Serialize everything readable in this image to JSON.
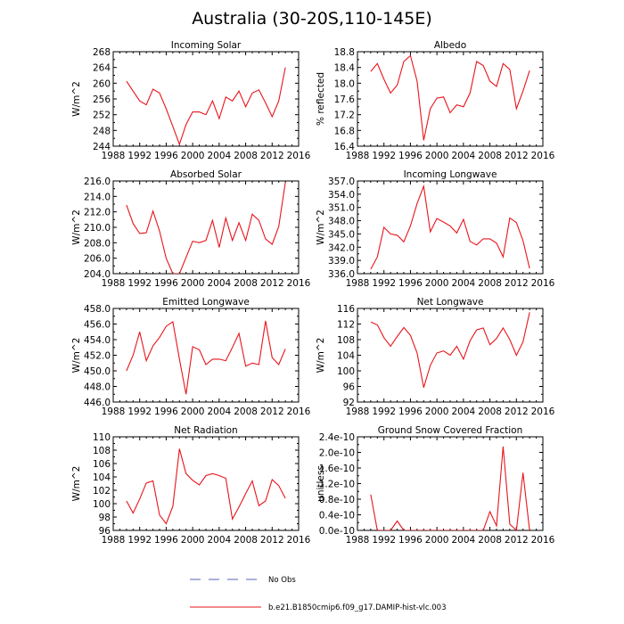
{
  "figure_title": "Australia (30-20S,110-145E)",
  "legend": [
    {
      "label": "No Obs",
      "style": "dashed",
      "color": "#5a5fb8"
    },
    {
      "label": "b.e21.B1850cmip6.f09_g17.DAMIP-hist-vlc.003",
      "style": "solid",
      "color": "#e8141b"
    }
  ],
  "chart_data": [
    {
      "type": "line",
      "title": "Incoming Solar",
      "ylabel": "W/m^2",
      "x": [
        1990,
        1991,
        1992,
        1993,
        1994,
        1995,
        1996,
        1997,
        1998,
        1999,
        2000,
        2001,
        2002,
        2003,
        2004,
        2005,
        2006,
        2007,
        2008,
        2009,
        2010,
        2011,
        2012,
        2013,
        2014
      ],
      "values": [
        260.5,
        258.0,
        255.5,
        254.5,
        258.5,
        257.5,
        253.5,
        249.0,
        244.5,
        249.5,
        252.7,
        252.7,
        252.0,
        255.5,
        251.0,
        256.5,
        255.5,
        258.0,
        254.0,
        257.5,
        258.3,
        255.0,
        251.5,
        255.5,
        264.0
      ],
      "xlim": [
        1988,
        2016
      ],
      "ylim": [
        244,
        268
      ],
      "yticks": [
        "244",
        "248",
        "252",
        "256",
        "260",
        "264",
        "268"
      ],
      "xticks": [
        "1988",
        "1992",
        "1996",
        "2000",
        "2004",
        "2008",
        "2012",
        "2016"
      ]
    },
    {
      "type": "line",
      "title": "Albedo",
      "ylabel": "% reflected",
      "x": [
        1990,
        1991,
        1992,
        1993,
        1994,
        1995,
        1996,
        1997,
        1998,
        1999,
        2000,
        2001,
        2002,
        2003,
        2004,
        2005,
        2006,
        2007,
        2008,
        2009,
        2010,
        2011,
        2012,
        2013,
        2014
      ],
      "values": [
        18.3,
        18.5,
        18.1,
        17.75,
        17.95,
        18.55,
        18.7,
        18.05,
        16.55,
        17.35,
        17.62,
        17.65,
        17.25,
        17.45,
        17.4,
        17.75,
        18.55,
        18.45,
        18.05,
        17.92,
        18.5,
        18.35,
        17.35,
        17.8,
        18.32
      ],
      "xlim": [
        1988,
        2016
      ],
      "ylim": [
        16.4,
        18.8
      ],
      "yticks": [
        "16.4",
        "16.8",
        "17.2",
        "17.6",
        "18.0",
        "18.4",
        "18.8"
      ],
      "xticks": [
        "1988",
        "1992",
        "1996",
        "2000",
        "2004",
        "2008",
        "2012",
        "2016"
      ]
    },
    {
      "type": "line",
      "title": "Absorbed Solar",
      "ylabel": "W/m^2",
      "x": [
        1990,
        1991,
        1992,
        1993,
        1994,
        1995,
        1996,
        1997,
        1998,
        1999,
        2000,
        2001,
        2002,
        2003,
        2004,
        2005,
        2006,
        2007,
        2008,
        2009,
        2010,
        2011,
        2012,
        2013,
        2014
      ],
      "values": [
        212.9,
        210.5,
        209.2,
        209.3,
        212.1,
        209.5,
        206.0,
        204.0,
        204.0,
        206.1,
        208.2,
        208.0,
        208.3,
        210.9,
        207.4,
        211.2,
        208.3,
        210.6,
        208.3,
        211.7,
        210.9,
        208.5,
        207.8,
        210.1,
        215.8
      ],
      "xlim": [
        1988,
        2016
      ],
      "ylim": [
        204,
        216
      ],
      "yticks": [
        "204.0",
        "206.0",
        "208.0",
        "210.0",
        "212.0",
        "214.0",
        "216.0"
      ],
      "xticks": [
        "1988",
        "1992",
        "1996",
        "2000",
        "2004",
        "2008",
        "2012",
        "2016"
      ]
    },
    {
      "type": "line",
      "title": "Incoming Longwave",
      "ylabel": "W/m^2",
      "x": [
        1990,
        1991,
        1992,
        1993,
        1994,
        1995,
        1996,
        1997,
        1998,
        1999,
        2000,
        2001,
        2002,
        2003,
        2004,
        2005,
        2006,
        2007,
        2008,
        2009,
        2010,
        2011,
        2012,
        2013,
        2014
      ],
      "values": [
        337.0,
        339.8,
        346.5,
        345.0,
        344.7,
        343.2,
        346.8,
        351.9,
        355.8,
        345.5,
        348.5,
        347.7,
        346.8,
        345.2,
        348.3,
        343.3,
        342.5,
        343.9,
        343.9,
        342.9,
        339.8,
        348.6,
        347.6,
        343.5,
        337.2
      ],
      "xlim": [
        1988,
        2016
      ],
      "ylim": [
        336,
        357
      ],
      "yticks": [
        "336.0",
        "339.0",
        "342.0",
        "345.0",
        "348.0",
        "351.0",
        "354.0",
        "357.0"
      ],
      "xticks": [
        "1988",
        "1992",
        "1996",
        "2000",
        "2004",
        "2008",
        "2012",
        "2016"
      ]
    },
    {
      "type": "line",
      "title": "Emitted Longwave",
      "ylabel": "W/m^2",
      "x": [
        1990,
        1991,
        1992,
        1993,
        1994,
        1995,
        1996,
        1997,
        1998,
        1999,
        2000,
        2001,
        2002,
        2003,
        2004,
        2005,
        2006,
        2007,
        2008,
        2009,
        2010,
        2011,
        2012,
        2013,
        2014
      ],
      "values": [
        450.0,
        452.0,
        455.0,
        451.3,
        453.2,
        454.3,
        455.7,
        456.3,
        451.5,
        447.0,
        453.1,
        452.7,
        450.8,
        451.5,
        451.5,
        451.3,
        453.0,
        454.8,
        450.6,
        451.0,
        450.8,
        456.4,
        451.7,
        450.8,
        452.8
      ],
      "xlim": [
        1988,
        2016
      ],
      "ylim": [
        446,
        458
      ],
      "yticks": [
        "446.0",
        "448.0",
        "450.0",
        "452.0",
        "454.0",
        "456.0",
        "458.0"
      ],
      "xticks": [
        "1988",
        "1992",
        "1996",
        "2000",
        "2004",
        "2008",
        "2012",
        "2016"
      ]
    },
    {
      "type": "line",
      "title": "Net Longwave",
      "ylabel": "W/m^2",
      "x": [
        1990,
        1991,
        1992,
        1993,
        1994,
        1995,
        1996,
        1997,
        1998,
        1999,
        2000,
        2001,
        2002,
        2003,
        2004,
        2005,
        2006,
        2007,
        2008,
        2009,
        2010,
        2011,
        2012,
        2013,
        2014
      ],
      "values": [
        112.5,
        111.8,
        108.5,
        106.3,
        108.8,
        111.1,
        109.1,
        104.6,
        95.7,
        101.4,
        104.6,
        105.1,
        104.0,
        106.3,
        103.0,
        107.7,
        110.5,
        111.0,
        106.7,
        108.3,
        111.0,
        108.0,
        104.0,
        107.4,
        115.0
      ],
      "xlim": [
        1988,
        2016
      ],
      "ylim": [
        92,
        116
      ],
      "yticks": [
        "92",
        "96",
        "100",
        "104",
        "108",
        "112",
        "116"
      ],
      "xticks": [
        "1988",
        "1992",
        "1996",
        "2000",
        "2004",
        "2008",
        "2012",
        "2016"
      ]
    },
    {
      "type": "line",
      "title": "Net Radiation",
      "ylabel": "W/m^2",
      "x": [
        1990,
        1991,
        1992,
        1993,
        1994,
        1995,
        1996,
        1997,
        1998,
        1999,
        2000,
        2001,
        2002,
        2003,
        2004,
        2005,
        2006,
        2007,
        2008,
        2009,
        2010,
        2011,
        2012,
        2013,
        2014
      ],
      "values": [
        100.4,
        98.6,
        100.7,
        103.1,
        103.4,
        98.3,
        97.0,
        99.6,
        108.2,
        104.5,
        103.5,
        102.8,
        104.2,
        104.5,
        104.2,
        103.8,
        97.7,
        99.5,
        101.5,
        103.4,
        99.7,
        100.4,
        103.6,
        102.7,
        100.8
      ],
      "xlim": [
        1988,
        2016
      ],
      "ylim": [
        96,
        110
      ],
      "yticks": [
        "96",
        "98",
        "100",
        "102",
        "104",
        "106",
        "108",
        "110"
      ],
      "xticks": [
        "1988",
        "1992",
        "1996",
        "2000",
        "2004",
        "2008",
        "2012",
        "2016"
      ]
    },
    {
      "type": "line",
      "title": "Ground Snow Covered Fraction",
      "ylabel": "unitless",
      "x": [
        1990,
        1991,
        1992,
        1993,
        1994,
        1995,
        1996,
        1997,
        1998,
        1999,
        2000,
        2001,
        2002,
        2003,
        2004,
        2005,
        2006,
        2007,
        2008,
        2009,
        2010,
        2011,
        2012,
        2013,
        2014
      ],
      "values": [
        9.2e-11,
        0,
        0,
        0,
        2.4e-11,
        0,
        0,
        0,
        0,
        0,
        0,
        0,
        0,
        0,
        0,
        0,
        0,
        0,
        4.8e-11,
        1.2e-11,
        2.15e-10,
        1.6e-11,
        0,
        1.48e-10,
        0
      ],
      "xlim": [
        1988,
        2016
      ],
      "ylim": [
        0,
        2.4e-10
      ],
      "yticks": [
        "0.0e-10",
        "0.4e-10",
        "0.8e-10",
        "1.2e-10",
        "1.6e-10",
        "2.0e-10",
        "2.4e-10"
      ],
      "xticks": [
        "1988",
        "1992",
        "1996",
        "2000",
        "2004",
        "2008",
        "2012",
        "2016"
      ]
    }
  ]
}
